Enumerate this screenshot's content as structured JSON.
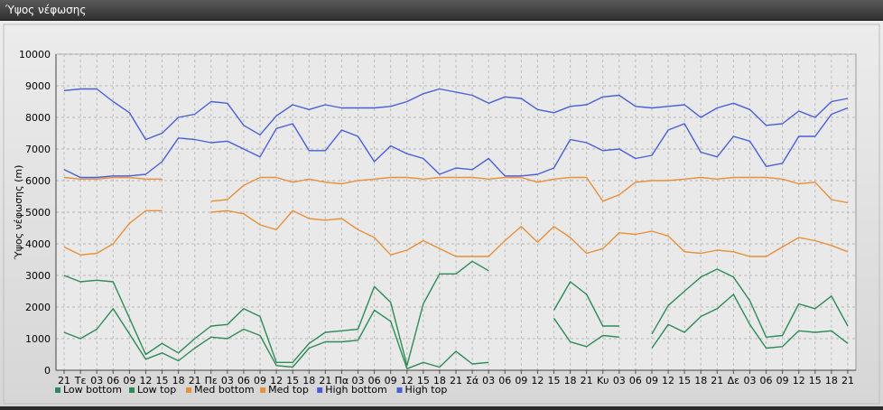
{
  "window": {
    "title": "Ύψος νέφωσης"
  },
  "chart_data": {
    "type": "line",
    "ylabel": "Ύψος νέφωσης (m)",
    "xlabel": "",
    "ylim": [
      0,
      10000
    ],
    "yticks": [
      0,
      1000,
      2000,
      3000,
      4000,
      5000,
      6000,
      7000,
      8000,
      9000,
      10000
    ],
    "grid": true,
    "legend_position": "bottom-left",
    "categories": [
      "21",
      "Τε",
      "03",
      "06",
      "09",
      "12",
      "15",
      "18",
      "21",
      "Πε",
      "03",
      "06",
      "09",
      "12",
      "15",
      "18",
      "21",
      "Πα",
      "03",
      "06",
      "09",
      "12",
      "15",
      "18",
      "21",
      "Σά",
      "03",
      "06",
      "09",
      "12",
      "15",
      "18",
      "21",
      "Κυ",
      "03",
      "06",
      "09",
      "12",
      "15",
      "18",
      "21",
      "Δε",
      "03",
      "06",
      "09",
      "12",
      "15",
      "18",
      "21"
    ],
    "series": [
      {
        "name": "Low bottom",
        "color": "#2e8b57",
        "values": [
          1200,
          1000,
          1300,
          1950,
          1150,
          350,
          550,
          300,
          700,
          1050,
          1000,
          1300,
          1100,
          150,
          100,
          700,
          900,
          900,
          950,
          1900,
          1550,
          50,
          250,
          100,
          600,
          200,
          250,
          null,
          null,
          null,
          1650,
          900,
          750,
          1100,
          1050,
          null,
          700,
          1450,
          1200,
          1700,
          1950,
          2400,
          1450,
          700,
          750,
          1250,
          1200,
          1250,
          850
        ]
      },
      {
        "name": "Low top",
        "color": "#2e8b57",
        "values": [
          3000,
          2800,
          2850,
          2800,
          1650,
          500,
          850,
          550,
          1000,
          1400,
          1450,
          1950,
          1700,
          250,
          250,
          850,
          1200,
          1250,
          1300,
          2650,
          2150,
          150,
          2100,
          3050,
          3050,
          3450,
          3150,
          null,
          null,
          null,
          1900,
          2800,
          2400,
          1400,
          1400,
          null,
          1150,
          2050,
          2500,
          2950,
          3200,
          2950,
          2200,
          1050,
          1100,
          2100,
          1950,
          2350,
          1400
        ]
      },
      {
        "name": "Med bottom",
        "color": "#e8903a",
        "values": [
          3900,
          3650,
          3700,
          4000,
          4650,
          5050,
          5050,
          null,
          null,
          5000,
          5050,
          4950,
          4600,
          4450,
          5050,
          4800,
          4750,
          4800,
          4450,
          4200,
          3650,
          3800,
          4100,
          3850,
          3600,
          3600,
          3600,
          4100,
          4550,
          4050,
          4550,
          4200,
          3700,
          3850,
          4350,
          4300,
          4400,
          4250,
          3750,
          3700,
          3800,
          3750,
          3600,
          3600,
          3900,
          4200,
          4100,
          3950,
          3750
        ]
      },
      {
        "name": "Med top",
        "color": "#e8903a",
        "values": [
          6100,
          6050,
          6050,
          6100,
          6100,
          6050,
          6050,
          null,
          null,
          5350,
          5400,
          5850,
          6100,
          6100,
          5950,
          6050,
          5950,
          5900,
          6000,
          6050,
          6100,
          6100,
          6050,
          6100,
          6100,
          6100,
          6050,
          6100,
          6100,
          5950,
          6050,
          6100,
          6100,
          5350,
          5550,
          5950,
          6000,
          6000,
          6050,
          6100,
          6050,
          6100,
          6100,
          6100,
          6050,
          5900,
          5950,
          5400,
          5300
        ]
      },
      {
        "name": "High bottom",
        "color": "#4a5fd6",
        "values": [
          6350,
          6100,
          6100,
          6150,
          6150,
          6200,
          6600,
          7350,
          7300,
          7200,
          7250,
          7000,
          6750,
          7650,
          7800,
          6950,
          6950,
          7600,
          7400,
          6600,
          7100,
          6850,
          6700,
          6200,
          6400,
          6350,
          6700,
          6150,
          6150,
          6200,
          6400,
          7300,
          7200,
          6950,
          7000,
          6700,
          6800,
          7600,
          7800,
          6900,
          6750,
          7400,
          7250,
          6450,
          6550,
          7400,
          7400,
          8100,
          8300
        ]
      },
      {
        "name": "High top",
        "color": "#4a5fd6",
        "values": [
          8850,
          8900,
          8900,
          8500,
          8150,
          7300,
          7500,
          8000,
          8100,
          8500,
          8450,
          7750,
          7450,
          8050,
          8400,
          8250,
          8400,
          8300,
          8300,
          8300,
          8350,
          8500,
          8750,
          8900,
          8800,
          8700,
          8450,
          8650,
          8600,
          8250,
          8150,
          8350,
          8400,
          8650,
          8700,
          8350,
          8300,
          8350,
          8400,
          8000,
          8300,
          8450,
          8250,
          7750,
          7800,
          8200,
          8000,
          8500,
          8600
        ]
      }
    ]
  }
}
